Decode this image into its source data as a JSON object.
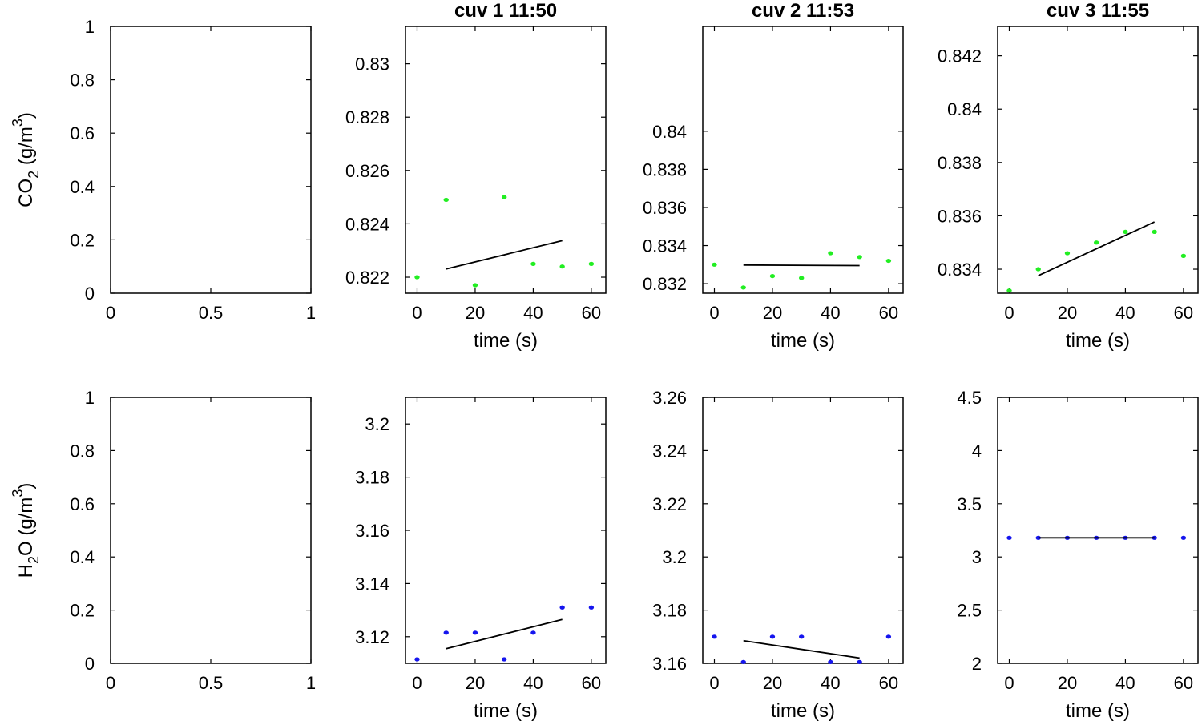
{
  "figure": {
    "background": "#ffffff"
  },
  "chart_data": [
    {
      "id": "co2-empty",
      "type": "scatter",
      "title": "",
      "xlabel": "",
      "ylabel": "CO_2 (g/m^3)",
      "ylabel_parts": {
        "main": "CO",
        "sub": "2",
        "unit_open": " (g/m",
        "sup": "3",
        "unit_close": ")"
      },
      "xlim": [
        0,
        1
      ],
      "ylim": [
        0,
        1
      ],
      "xticks": [
        "0",
        "0.5",
        "1"
      ],
      "yticks": [
        "0",
        "0.2",
        "0.4",
        "0.6",
        "0.8",
        "1"
      ],
      "series": []
    },
    {
      "id": "co2-cuv1",
      "type": "scatter",
      "title": "cuv 1 11:50",
      "xlabel": "time (s)",
      "ylabel": "",
      "xlim": [
        -4,
        65
      ],
      "ylim": [
        0.8214,
        0.8314
      ],
      "xticks": [
        "0",
        "20",
        "40",
        "60"
      ],
      "yticks": [
        "0.822",
        "0.824",
        "0.826",
        "0.828",
        "0.83"
      ],
      "series": [
        {
          "name": "measured",
          "color": "#22ee22",
          "x": [
            0,
            10,
            20,
            30,
            40,
            50,
            60
          ],
          "y": [
            0.822,
            0.8249,
            0.8217,
            0.825,
            0.8225,
            0.8224,
            0.8225
          ]
        },
        {
          "name": "fit",
          "kind": "line",
          "color": "#000000",
          "x": [
            10,
            50
          ],
          "y": [
            0.82231,
            0.82337
          ]
        }
      ]
    },
    {
      "id": "co2-cuv2",
      "type": "scatter",
      "title": "cuv 2 11:53",
      "xlabel": "time (s)",
      "ylabel": "",
      "xlim": [
        -4,
        65
      ],
      "ylim": [
        0.8315,
        0.8455
      ],
      "xticks": [
        "0",
        "20",
        "40",
        "60"
      ],
      "yticks": [
        "0.832",
        "0.834",
        "0.836",
        "0.838",
        "0.84"
      ],
      "series": [
        {
          "name": "measured",
          "color": "#22ee22",
          "x": [
            0,
            10,
            20,
            30,
            40,
            50,
            60
          ],
          "y": [
            0.833,
            0.8318,
            0.8324,
            0.8323,
            0.8336,
            0.8334,
            0.8332
          ]
        },
        {
          "name": "fit",
          "kind": "line",
          "color": "#000000",
          "x": [
            10,
            50
          ],
          "y": [
            0.83298,
            0.83295
          ]
        }
      ]
    },
    {
      "id": "co2-cuv3",
      "type": "scatter",
      "title": "cuv 3 11:55",
      "xlabel": "time (s)",
      "ylabel": "",
      "xlim": [
        -4,
        65
      ],
      "ylim": [
        0.8331,
        0.8431
      ],
      "xticks": [
        "0",
        "20",
        "40",
        "60"
      ],
      "yticks": [
        "0.834",
        "0.836",
        "0.838",
        "0.84",
        "0.842"
      ],
      "series": [
        {
          "name": "measured",
          "color": "#22ee22",
          "x": [
            0,
            10,
            20,
            30,
            40,
            50,
            60
          ],
          "y": [
            0.8332,
            0.834,
            0.8346,
            0.835,
            0.8354,
            0.8354,
            0.8345
          ]
        },
        {
          "name": "fit",
          "kind": "line",
          "color": "#000000",
          "x": [
            10,
            50
          ],
          "y": [
            0.83376,
            0.83577
          ]
        }
      ]
    },
    {
      "id": "h2o-empty",
      "type": "scatter",
      "title": "",
      "xlabel": "",
      "ylabel": "H_2O (g/m^3)",
      "ylabel_parts": {
        "main": "H",
        "sub": "2",
        "unit_open": "O (g/m",
        "sup": "3",
        "unit_close": ")"
      },
      "xlim": [
        0,
        1
      ],
      "ylim": [
        0,
        1
      ],
      "xticks": [
        "0",
        "0.5",
        "1"
      ],
      "yticks": [
        "0",
        "0.2",
        "0.4",
        "0.6",
        "0.8",
        "1"
      ],
      "series": []
    },
    {
      "id": "h2o-cuv1",
      "type": "scatter",
      "title": "",
      "xlabel": "time (s)",
      "ylabel": "",
      "xlim": [
        -4,
        65
      ],
      "ylim": [
        3.11,
        3.21
      ],
      "xticks": [
        "0",
        "20",
        "40",
        "60"
      ],
      "yticks": [
        "3.12",
        "3.14",
        "3.16",
        "3.18",
        "3.2"
      ],
      "series": [
        {
          "name": "measured",
          "color": "#1515ee",
          "x": [
            0,
            10,
            20,
            30,
            40,
            50,
            60
          ],
          "y": [
            3.1115,
            3.1215,
            3.1215,
            3.1115,
            3.1215,
            3.131,
            3.131
          ]
        },
        {
          "name": "fit",
          "kind": "line",
          "color": "#000000",
          "x": [
            10,
            50
          ],
          "y": [
            3.1155,
            3.1265
          ]
        }
      ]
    },
    {
      "id": "h2o-cuv2",
      "type": "scatter",
      "title": "",
      "xlabel": "time (s)",
      "ylabel": "",
      "xlim": [
        -4,
        65
      ],
      "ylim": [
        3.16,
        3.26
      ],
      "xticks": [
        "0",
        "20",
        "40",
        "60"
      ],
      "yticks": [
        "3.16",
        "3.18",
        "3.2",
        "3.22",
        "3.24",
        "3.26"
      ],
      "series": [
        {
          "name": "measured",
          "color": "#1515ee",
          "x": [
            0,
            10,
            20,
            30,
            40,
            50,
            60
          ],
          "y": [
            3.17,
            3.1605,
            3.17,
            3.17,
            3.1605,
            3.1605,
            3.17
          ]
        },
        {
          "name": "fit",
          "kind": "line",
          "color": "#000000",
          "x": [
            10,
            50
          ],
          "y": [
            3.1685,
            3.162
          ]
        }
      ]
    },
    {
      "id": "h2o-cuv3",
      "type": "scatter",
      "title": "",
      "xlabel": "time (s)",
      "ylabel": "",
      "xlim": [
        -4,
        65
      ],
      "ylim": [
        2,
        4.5
      ],
      "xticks": [
        "0",
        "20",
        "40",
        "60"
      ],
      "yticks": [
        "2",
        "2.5",
        "3",
        "3.5",
        "4",
        "4.5"
      ],
      "series": [
        {
          "name": "measured",
          "color": "#1515ee",
          "x": [
            0,
            10,
            20,
            30,
            40,
            50,
            60
          ],
          "y": [
            3.18,
            3.18,
            3.18,
            3.18,
            3.18,
            3.18,
            3.18
          ]
        },
        {
          "name": "fit",
          "kind": "line",
          "color": "#000000",
          "x": [
            10,
            50
          ],
          "y": [
            3.18,
            3.18
          ]
        }
      ]
    }
  ]
}
